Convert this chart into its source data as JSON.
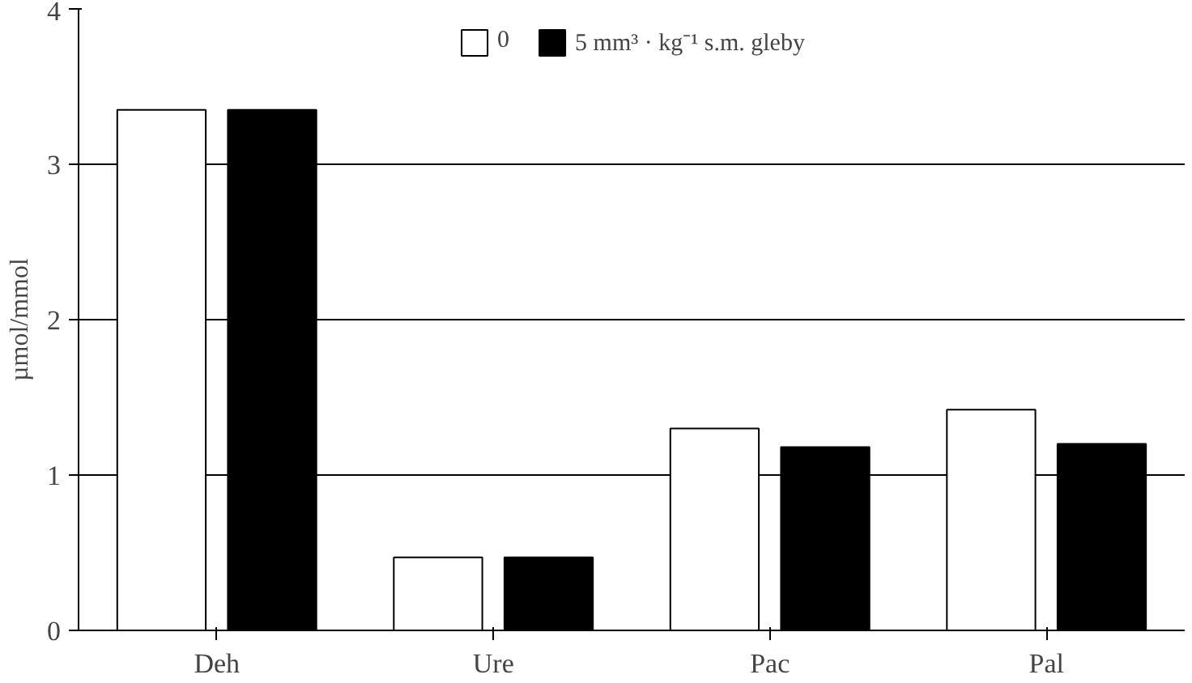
{
  "chart_data": {
    "type": "bar",
    "ylabel": "µmol/mmol",
    "categories": [
      "Deh",
      "Ure",
      "Pac",
      "Pal"
    ],
    "series": [
      {
        "name": "0",
        "color": "#ffffff",
        "values": [
          3.35,
          0.47,
          1.3,
          1.42
        ]
      },
      {
        "name": "5 mm³ · kg⁻¹ s.m. gleby",
        "color": "#000000",
        "values": [
          3.35,
          0.47,
          1.18,
          1.2
        ]
      }
    ],
    "ylim": [
      0,
      4
    ],
    "yticks": [
      0,
      1,
      2,
      3,
      4
    ],
    "grid": "y",
    "legend": "top"
  }
}
